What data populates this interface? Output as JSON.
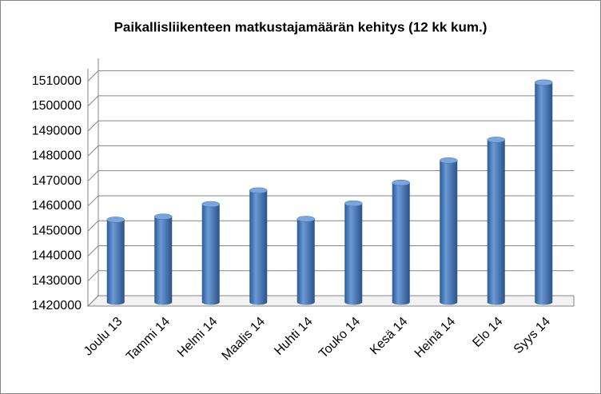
{
  "chart_data": {
    "type": "bar",
    "title": "Paikallisliikenteen matkustajamäärän kehitys (12 kk kum.)",
    "categories": [
      "Joulu 13",
      "Tammi 14",
      "Helmi 14",
      "Maalis 14",
      "Huhti 14",
      "Touko 14",
      "Kesä 14",
      "Heinä 14",
      "Elo 14",
      "Syys 14"
    ],
    "values": [
      1453300,
      1454500,
      1459500,
      1465000,
      1453600,
      1459800,
      1468100,
      1477000,
      1485300,
      1508200
    ],
    "color": "#4a7ebb",
    "ylim": [
      1420000,
      1515000
    ],
    "yticks": [
      1420000,
      1430000,
      1440000,
      1450000,
      1460000,
      1470000,
      1480000,
      1490000,
      1500000,
      1510000
    ],
    "grid": true
  }
}
